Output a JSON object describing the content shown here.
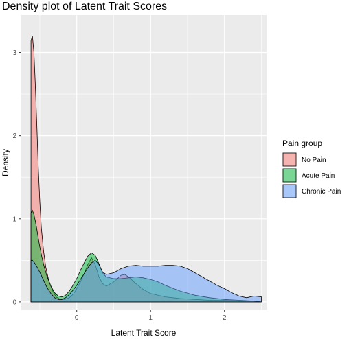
{
  "chart_data": {
    "type": "area",
    "title": "Density plot of Latent Trait Scores",
    "xlabel": "Latent Trait Score",
    "ylabel": "Density",
    "xlim": [
      -0.76,
      2.57
    ],
    "ylim": [
      -0.1,
      3.45
    ],
    "xticks": [
      0,
      1,
      2
    ],
    "yticks": [
      0,
      1,
      2,
      3
    ],
    "grid": true,
    "legend": {
      "title": "Pain group",
      "position": "right"
    },
    "series": [
      {
        "name": "No Pain",
        "color": "#F8766D",
        "x": [
          -0.62,
          -0.6,
          -0.58,
          -0.56,
          -0.54,
          -0.52,
          -0.5,
          -0.48,
          -0.45,
          -0.42,
          -0.38,
          -0.33,
          -0.28,
          -0.22,
          -0.16,
          -0.1,
          -0.04,
          0.0,
          0.05,
          0.1,
          0.15,
          0.2,
          0.25,
          0.3,
          0.35,
          0.4,
          0.5,
          0.6,
          0.65,
          0.7,
          0.8,
          0.9,
          1.0,
          1.2,
          1.4,
          1.6,
          1.8,
          2.0,
          2.2,
          2.4,
          2.5
        ],
        "y": [
          3.14,
          3.2,
          3.0,
          2.6,
          2.1,
          1.6,
          1.2,
          0.9,
          0.62,
          0.42,
          0.26,
          0.14,
          0.06,
          0.03,
          0.03,
          0.05,
          0.1,
          0.16,
          0.24,
          0.34,
          0.45,
          0.53,
          0.45,
          0.3,
          0.22,
          0.19,
          0.24,
          0.32,
          0.33,
          0.3,
          0.22,
          0.15,
          0.1,
          0.06,
          0.04,
          0.03,
          0.02,
          0.02,
          0.01,
          0.01,
          0.0
        ]
      },
      {
        "name": "Acute Pain",
        "color": "#00BA38",
        "x": [
          -0.62,
          -0.6,
          -0.58,
          -0.56,
          -0.54,
          -0.52,
          -0.5,
          -0.47,
          -0.44,
          -0.4,
          -0.35,
          -0.3,
          -0.25,
          -0.2,
          -0.15,
          -0.1,
          -0.05,
          0.0,
          0.05,
          0.1,
          0.15,
          0.2,
          0.25,
          0.3,
          0.35,
          0.4,
          0.5,
          0.6,
          0.7,
          0.8,
          0.9,
          1.0,
          1.1,
          1.2,
          1.4,
          1.6,
          1.8,
          2.0,
          2.2,
          2.4,
          2.5
        ],
        "y": [
          1.07,
          1.1,
          1.05,
          0.97,
          0.87,
          0.76,
          0.66,
          0.53,
          0.42,
          0.3,
          0.19,
          0.11,
          0.07,
          0.06,
          0.08,
          0.13,
          0.2,
          0.28,
          0.38,
          0.47,
          0.55,
          0.59,
          0.56,
          0.46,
          0.35,
          0.3,
          0.28,
          0.28,
          0.29,
          0.3,
          0.29,
          0.27,
          0.24,
          0.2,
          0.13,
          0.08,
          0.05,
          0.03,
          0.02,
          0.01,
          0.0
        ]
      },
      {
        "name": "Chronic Pain",
        "color": "#619CFF",
        "x": [
          -0.62,
          -0.6,
          -0.58,
          -0.55,
          -0.52,
          -0.48,
          -0.44,
          -0.4,
          -0.35,
          -0.3,
          -0.25,
          -0.2,
          -0.15,
          -0.1,
          -0.05,
          0.0,
          0.05,
          0.1,
          0.15,
          0.2,
          0.25,
          0.3,
          0.35,
          0.4,
          0.5,
          0.6,
          0.7,
          0.8,
          0.9,
          1.0,
          1.1,
          1.2,
          1.3,
          1.4,
          1.5,
          1.6,
          1.7,
          1.8,
          1.9,
          2.0,
          2.1,
          2.2,
          2.3,
          2.4,
          2.5
        ],
        "y": [
          0.5,
          0.5,
          0.48,
          0.44,
          0.39,
          0.32,
          0.24,
          0.17,
          0.1,
          0.05,
          0.03,
          0.03,
          0.05,
          0.09,
          0.14,
          0.2,
          0.27,
          0.34,
          0.41,
          0.47,
          0.5,
          0.45,
          0.36,
          0.33,
          0.35,
          0.4,
          0.43,
          0.44,
          0.43,
          0.43,
          0.43,
          0.44,
          0.44,
          0.43,
          0.4,
          0.35,
          0.3,
          0.25,
          0.2,
          0.16,
          0.11,
          0.07,
          0.05,
          0.07,
          0.06
        ]
      }
    ]
  }
}
